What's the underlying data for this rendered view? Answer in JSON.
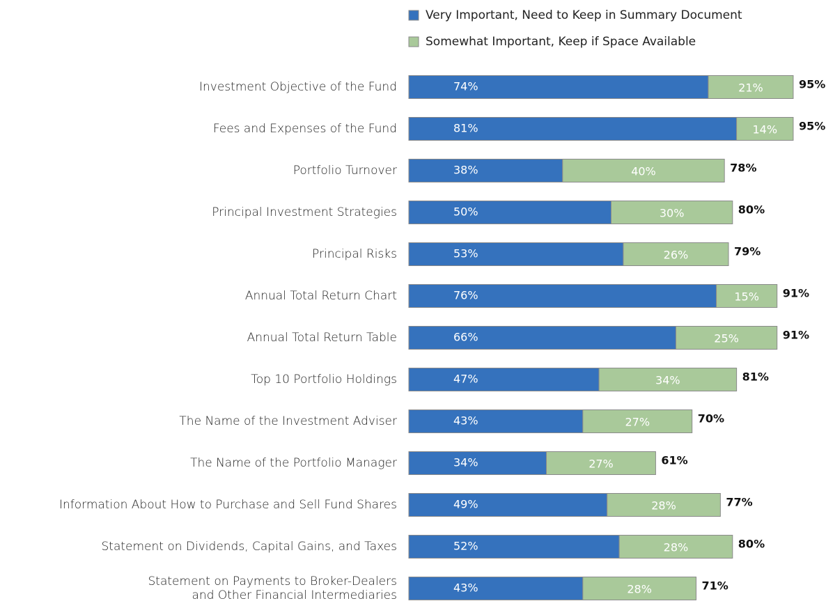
{
  "chart_data": {
    "type": "stacked_bar_horizontal",
    "categories": [
      "Investment Objective of the Fund",
      "Fees and Expenses of the Fund",
      "Portfolio Turnover",
      "Principal Investment Strategies",
      "Principal Risks",
      "Annual Total Return Chart",
      "Annual Total Return Table",
      "Top 10 Portfolio Holdings",
      "The Name of the Investment Adviser",
      "The Name of the Portfolio Manager",
      "Information About How to Purchase and Sell Fund Shares",
      "Statement on Dividends, Capital Gains, and Taxes",
      "Statement on Payments to Broker-Dealers\nand Other Financial Intermediaries"
    ],
    "series": [
      {
        "name": "Very Important, Need to Keep in Summary Document",
        "color": "#3572bd",
        "values": [
          74,
          81,
          38,
          50,
          53,
          76,
          66,
          47,
          43,
          34,
          49,
          52,
          43
        ],
        "value_labels": [
          "74%",
          "81%",
          "38%",
          "50%",
          "53%",
          "76%",
          "66%",
          "47%",
          "43%",
          "34%",
          "49%",
          "52%",
          "43%"
        ]
      },
      {
        "name": "Somewhat Important, Keep if Space Available",
        "color": "#a9c99a",
        "values": [
          21,
          14,
          40,
          30,
          26,
          15,
          25,
          34,
          27,
          27,
          28,
          28,
          28
        ],
        "value_labels": [
          "21%",
          "14%",
          "40%",
          "30%",
          "26%",
          "15%",
          "25%",
          "34%",
          "27%",
          "27%",
          "28%",
          "28%",
          "28%"
        ]
      }
    ],
    "totals": {
      "values": [
        95,
        95,
        78,
        80,
        79,
        91,
        91,
        81,
        70,
        61,
        77,
        80,
        71
      ],
      "value_labels": [
        "95%",
        "95%",
        "78%",
        "80%",
        "79%",
        "91%",
        "91%",
        "81%",
        "70%",
        "61%",
        "77%",
        "80%",
        "71%"
      ]
    }
  }
}
